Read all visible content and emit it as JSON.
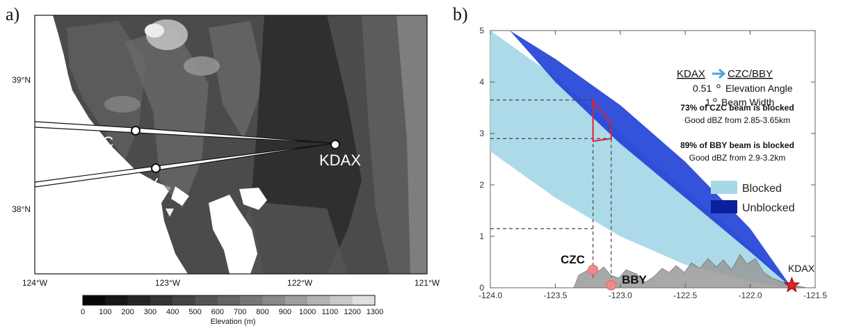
{
  "panel_a": {
    "label": "a)",
    "lat_labels": [
      "39°N",
      "38°N"
    ],
    "lon_labels": [
      "124°W",
      "123°W",
      "122°W",
      "121°W"
    ],
    "sites": [
      {
        "name": "CZC",
        "lon": -123.21,
        "lat": 38.61
      },
      {
        "name": "BBY",
        "lon": -123.07,
        "lat": 38.32
      },
      {
        "name": "KDAX",
        "lon": -121.68,
        "lat": 38.5
      }
    ],
    "colorbar": {
      "ticks": [
        "0",
        "100",
        "200",
        "300",
        "400",
        "500",
        "600",
        "700",
        "800",
        "900",
        "1000",
        "1100",
        "1200",
        "1300"
      ],
      "label": "Elevation (m)",
      "colors": [
        "#080808",
        "#161616",
        "#252525",
        "#343434",
        "#444444",
        "#545454",
        "#656565",
        "#777777",
        "#8a8a8a",
        "#9e9e9e",
        "#b3b3b3",
        "#c9c9c9",
        "#e0e0e0"
      ]
    }
  },
  "panel_b": {
    "label": "b)",
    "title": "KDAX",
    "title_target": "CZC/BBY",
    "arrow_color": "#4aa3df",
    "elev_angle": "0.51",
    "elev_angle_text": "Elevation Angle",
    "beam_width": "1",
    "beam_width_text": "Beam Width",
    "czc_note_bold": "73% of CZC beam is blocked",
    "czc_note": "Good dBZ from 2.85-3.65km",
    "bby_note_bold": "89% of BBY beam is blocked",
    "bby_note": "Good dBZ from 2.9-3.2km",
    "legend": [
      {
        "label": "Blocked",
        "color": "#a8d8e8"
      },
      {
        "label": "Unblocked",
        "color": "#0a1f9c"
      }
    ],
    "site_labels": {
      "czc": "CZC",
      "bby": "BBY",
      "kdax": "KDAX"
    }
  },
  "chart_data": {
    "type": "area",
    "title": "",
    "xlabel": "",
    "ylabel": "",
    "xlim": [
      -124.0,
      -121.5
    ],
    "ylim": [
      0,
      5
    ],
    "x_ticks": [
      "-124.0",
      "-123.5",
      "-123.0",
      "-122.5",
      "-122.0",
      "-121.5"
    ],
    "y_ticks": [
      "0",
      "1",
      "2",
      "3",
      "4",
      "5"
    ],
    "series": [
      {
        "name": "Blocked",
        "color": "#a8d8e8",
        "x": [
          -124.0,
          -123.5,
          -123.0,
          -122.5,
          -122.0,
          -121.68
        ],
        "upper": [
          5.0,
          4.1,
          3.0,
          1.9,
          0.8,
          0.0
        ],
        "lower": [
          2.65,
          1.75,
          1.0,
          0.45,
          0.12,
          0.0
        ]
      },
      {
        "name": "Unblocked",
        "color": "#1f3fd6",
        "x": [
          -123.85,
          -123.5,
          -123.0,
          -122.5,
          -122.0,
          -121.68
        ],
        "upper": [
          5.0,
          4.45,
          3.55,
          2.45,
          1.15,
          0.0
        ],
        "lower": [
          5.0,
          4.0,
          2.8,
          1.75,
          0.7,
          0.0
        ]
      }
    ],
    "points": [
      {
        "label": "CZC",
        "x": -123.21,
        "y": 0.35
      },
      {
        "label": "BBY",
        "x": -123.07,
        "y": 0.05
      },
      {
        "label": "KDAX",
        "x": -121.68,
        "y": 0.02
      }
    ],
    "guides": [
      {
        "x": -123.21,
        "y_levels": [
          3.65,
          1.15
        ]
      },
      {
        "x": -123.07,
        "y_levels": [
          2.9
        ]
      }
    ],
    "highlight": {
      "x": [
        -123.21,
        -123.07
      ],
      "y_top": [
        3.65,
        3.2
      ],
      "y_bottom": [
        2.85,
        2.9
      ]
    }
  }
}
